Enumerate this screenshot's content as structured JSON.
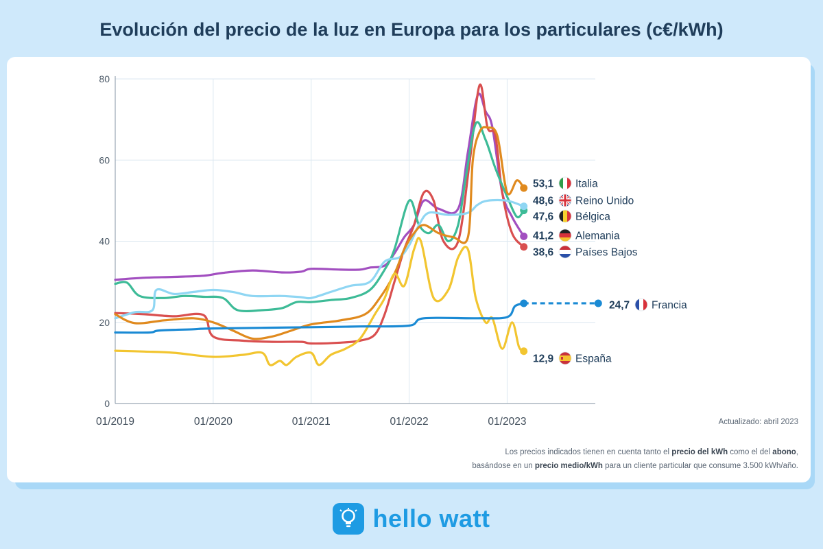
{
  "title": "Evolución del precio de la luz en Europa para los particulares (c€/kWh)",
  "updated": "Actualizado: abril 2023",
  "footnote": {
    "line1_a": "Los precios indicados tienen en cuenta tanto el ",
    "line1_b": "precio del kWh",
    "line1_c": " como el del ",
    "line1_d": "abono",
    "line1_e": ",",
    "line2_a": "basándose en un ",
    "line2_b": "precio medio/kWh",
    "line2_c": " para un cliente particular que consume 3.500 kWh/año."
  },
  "brand": {
    "name": "hello watt",
    "icon": "lightbulb-icon"
  },
  "colors": {
    "italia": "#e08a1e",
    "reino_unido": "#8fd6f3",
    "belgica": "#3dbb97",
    "alemania": "#a24fc0",
    "paises_bajos": "#d94f4f",
    "francia": "#1a8ad4",
    "espana": "#f2c530"
  },
  "chart_data": {
    "type": "line",
    "title": "Evolución del precio de la luz en Europa para los particulares (c€/kWh)",
    "xlabel": "",
    "ylabel": "",
    "ylim": [
      0,
      80
    ],
    "yticks": [
      0,
      20,
      40,
      60,
      80
    ],
    "xlim": [
      2019.0,
      2023.9
    ],
    "xticks": [
      {
        "value": 2019,
        "label": "01/2019"
      },
      {
        "value": 2020,
        "label": "01/2020"
      },
      {
        "value": 2021,
        "label": "01/2021"
      },
      {
        "value": 2022,
        "label": "01/2022"
      },
      {
        "value": 2023,
        "label": "01/2023"
      }
    ],
    "grid": "vertical-and-horizontal",
    "legend": "right-labels",
    "series": [
      {
        "key": "alemania",
        "name": "Alemania",
        "value_label": "41,2",
        "flag": "de",
        "points": [
          [
            2019.0,
            30.5
          ],
          [
            2019.3,
            31
          ],
          [
            2019.6,
            31.2
          ],
          [
            2019.9,
            31.5
          ],
          [
            2020.1,
            32.2
          ],
          [
            2020.4,
            32.8
          ],
          [
            2020.7,
            32.3
          ],
          [
            2020.9,
            32.5
          ],
          [
            2021.0,
            33.2
          ],
          [
            2021.3,
            33
          ],
          [
            2021.5,
            33
          ],
          [
            2021.6,
            33.5
          ],
          [
            2021.75,
            34
          ],
          [
            2021.85,
            37
          ],
          [
            2021.95,
            41
          ],
          [
            2022.05,
            44
          ],
          [
            2022.15,
            50
          ],
          [
            2022.3,
            48
          ],
          [
            2022.5,
            48
          ],
          [
            2022.6,
            62
          ],
          [
            2022.7,
            76
          ],
          [
            2022.78,
            72
          ],
          [
            2022.85,
            68
          ],
          [
            2022.95,
            52
          ],
          [
            2023.05,
            46
          ],
          [
            2023.17,
            41.2
          ]
        ]
      },
      {
        "key": "paises_bajos",
        "name": "Países Bajos",
        "value_label": "38,6",
        "flag": "nl",
        "points": [
          [
            2019.0,
            22.3
          ],
          [
            2019.3,
            22
          ],
          [
            2019.6,
            21.5
          ],
          [
            2019.9,
            21.8
          ],
          [
            2020.0,
            16.5
          ],
          [
            2020.3,
            15.5
          ],
          [
            2020.6,
            15.2
          ],
          [
            2020.9,
            15.2
          ],
          [
            2021.0,
            14.8
          ],
          [
            2021.3,
            15
          ],
          [
            2021.5,
            15.5
          ],
          [
            2021.65,
            17
          ],
          [
            2021.75,
            22
          ],
          [
            2021.85,
            30
          ],
          [
            2021.95,
            38
          ],
          [
            2022.05,
            44
          ],
          [
            2022.15,
            52
          ],
          [
            2022.25,
            50
          ],
          [
            2022.35,
            40
          ],
          [
            2022.5,
            40
          ],
          [
            2022.62,
            60
          ],
          [
            2022.72,
            78.5
          ],
          [
            2022.8,
            68
          ],
          [
            2022.88,
            66
          ],
          [
            2022.95,
            52
          ],
          [
            2023.05,
            42
          ],
          [
            2023.17,
            38.6
          ]
        ]
      },
      {
        "key": "belgica",
        "name": "Bélgica",
        "value_label": "47,6",
        "flag": "be",
        "points": [
          [
            2019.0,
            29.5
          ],
          [
            2019.12,
            29.8
          ],
          [
            2019.25,
            26.5
          ],
          [
            2019.5,
            26
          ],
          [
            2019.7,
            26.5
          ],
          [
            2019.9,
            26.3
          ],
          [
            2020.1,
            26
          ],
          [
            2020.25,
            23
          ],
          [
            2020.5,
            23
          ],
          [
            2020.7,
            23.5
          ],
          [
            2020.85,
            25
          ],
          [
            2021.0,
            25
          ],
          [
            2021.2,
            25.5
          ],
          [
            2021.4,
            26
          ],
          [
            2021.6,
            28
          ],
          [
            2021.75,
            33
          ],
          [
            2021.85,
            38
          ],
          [
            2022.0,
            50
          ],
          [
            2022.1,
            44
          ],
          [
            2022.2,
            42
          ],
          [
            2022.3,
            44
          ],
          [
            2022.4,
            40
          ],
          [
            2022.5,
            44
          ],
          [
            2022.58,
            56
          ],
          [
            2022.68,
            69
          ],
          [
            2022.78,
            65
          ],
          [
            2022.88,
            58
          ],
          [
            2023.0,
            51
          ],
          [
            2023.1,
            46
          ],
          [
            2023.17,
            47.6
          ]
        ]
      },
      {
        "key": "reino_unido",
        "name": "Reino Unido",
        "value_label": "48,6",
        "flag": "gb",
        "points": [
          [
            2019.0,
            21
          ],
          [
            2019.2,
            22.5
          ],
          [
            2019.38,
            23
          ],
          [
            2019.42,
            28
          ],
          [
            2019.6,
            27
          ],
          [
            2019.8,
            27.5
          ],
          [
            2020.0,
            28
          ],
          [
            2020.2,
            27.5
          ],
          [
            2020.4,
            26.5
          ],
          [
            2020.7,
            26.5
          ],
          [
            2020.9,
            26.2
          ],
          [
            2021.0,
            26
          ],
          [
            2021.2,
            27.5
          ],
          [
            2021.4,
            29
          ],
          [
            2021.6,
            30
          ],
          [
            2021.75,
            35
          ],
          [
            2021.9,
            36
          ],
          [
            2022.0,
            39
          ],
          [
            2022.1,
            44
          ],
          [
            2022.2,
            47
          ],
          [
            2022.4,
            46.5
          ],
          [
            2022.6,
            47
          ],
          [
            2022.7,
            49
          ],
          [
            2022.8,
            50
          ],
          [
            2023.0,
            50
          ],
          [
            2023.17,
            48.6
          ]
        ]
      },
      {
        "key": "italia",
        "name": "Italia",
        "value_label": "53,1",
        "flag": "it",
        "points": [
          [
            2019.0,
            22
          ],
          [
            2019.2,
            19.8
          ],
          [
            2019.5,
            20.5
          ],
          [
            2019.8,
            21
          ],
          [
            2020.0,
            20
          ],
          [
            2020.2,
            18
          ],
          [
            2020.4,
            16
          ],
          [
            2020.6,
            16.5
          ],
          [
            2020.8,
            18
          ],
          [
            2021.0,
            19.5
          ],
          [
            2021.3,
            20.5
          ],
          [
            2021.55,
            22
          ],
          [
            2021.7,
            26
          ],
          [
            2021.85,
            32
          ],
          [
            2021.95,
            38
          ],
          [
            2022.05,
            42
          ],
          [
            2022.15,
            44
          ],
          [
            2022.3,
            42
          ],
          [
            2022.45,
            41
          ],
          [
            2022.6,
            41
          ],
          [
            2022.65,
            60
          ],
          [
            2022.72,
            67
          ],
          [
            2022.8,
            68
          ],
          [
            2022.9,
            66
          ],
          [
            2023.0,
            52
          ],
          [
            2023.1,
            55
          ],
          [
            2023.17,
            53.1
          ]
        ]
      },
      {
        "key": "espana",
        "name": "España",
        "value_label": "12,9",
        "flag": "es",
        "points": [
          [
            2019.0,
            13
          ],
          [
            2019.3,
            12.8
          ],
          [
            2019.6,
            12.5
          ],
          [
            2020.0,
            11.5
          ],
          [
            2020.3,
            12
          ],
          [
            2020.5,
            12.5
          ],
          [
            2020.58,
            9.5
          ],
          [
            2020.68,
            10.5
          ],
          [
            2020.75,
            9.5
          ],
          [
            2020.85,
            11.5
          ],
          [
            2021.0,
            12.5
          ],
          [
            2021.08,
            9.5
          ],
          [
            2021.2,
            12
          ],
          [
            2021.35,
            13.5
          ],
          [
            2021.5,
            16
          ],
          [
            2021.65,
            22
          ],
          [
            2021.75,
            26
          ],
          [
            2021.85,
            32
          ],
          [
            2021.95,
            29
          ],
          [
            2022.05,
            38
          ],
          [
            2022.12,
            40
          ],
          [
            2022.25,
            26
          ],
          [
            2022.4,
            28
          ],
          [
            2022.5,
            36
          ],
          [
            2022.6,
            38
          ],
          [
            2022.68,
            26
          ],
          [
            2022.78,
            20
          ],
          [
            2022.85,
            21
          ],
          [
            2022.95,
            13.5
          ],
          [
            2023.05,
            20
          ],
          [
            2023.12,
            14
          ],
          [
            2023.17,
            12.9
          ]
        ]
      },
      {
        "key": "francia",
        "name": "Francia",
        "value_label": "24,7",
        "flag": "fr",
        "points": [
          [
            2019.0,
            17.5
          ],
          [
            2019.35,
            17.5
          ],
          [
            2019.45,
            18
          ],
          [
            2019.8,
            18.3
          ],
          [
            2020.0,
            18.5
          ],
          [
            2021.0,
            18.8
          ],
          [
            2021.5,
            19
          ],
          [
            2022.0,
            19.2
          ],
          [
            2022.15,
            21
          ],
          [
            2022.7,
            21
          ],
          [
            2023.0,
            21.3
          ],
          [
            2023.08,
            24
          ],
          [
            2023.17,
            24.7
          ]
        ],
        "projection": [
          [
            2023.17,
            24.7
          ],
          [
            2023.93,
            24.7
          ]
        ]
      }
    ]
  }
}
